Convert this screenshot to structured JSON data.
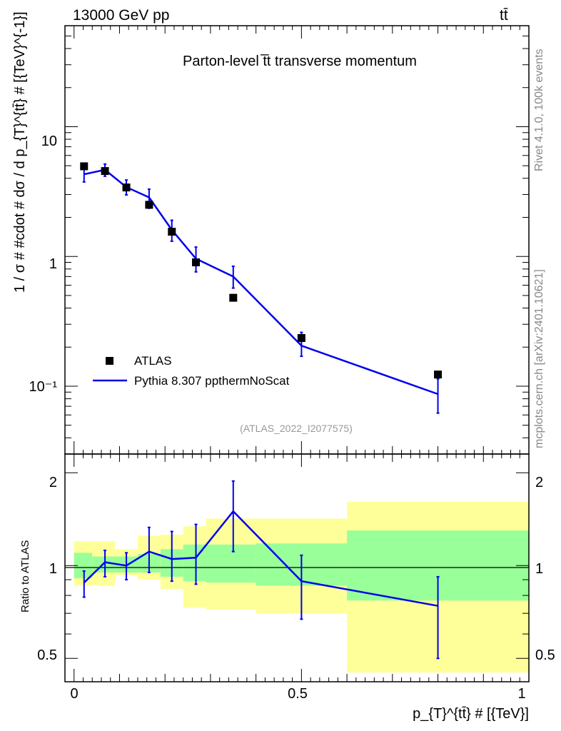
{
  "header": {
    "energy_label": "13000 GeV pp",
    "process_label": "tt̄"
  },
  "side_labels": {
    "rivet": "Rivet 4.1.0,  100k events",
    "mcplots": "mcplots.cern.ch [arXiv:2401.10621]"
  },
  "chart_data": {
    "type": "line",
    "title": "Parton-level t̅t transverse momentum",
    "analysis_id": "(ATLAS_2022_I2077575)",
    "ylabel": "1 / σ # #cdot # dσ / d p_{T}^{tt̄} # [{TeV}^{-1}]",
    "xlabel": "p_{T}^{tt̄} # [{TeV}]",
    "ratio_ylabel": "Ratio to ATLAS",
    "xlim": [
      -0.02,
      1.0
    ],
    "ylim_main": [
      0.03,
      60
    ],
    "ylim_ratio": [
      0.42,
      2.3
    ],
    "main_y_ticks": [
      "10⁻¹",
      "1",
      "10"
    ],
    "ratio_y_ticks": [
      "0.5",
      "1",
      "2"
    ],
    "x_ticks": [
      "0",
      "0.5",
      "1"
    ],
    "legend": [
      "ATLAS",
      "Pythia 8.307 ppthermNoScat"
    ],
    "series": [
      {
        "name": "ATLAS",
        "style": "markers",
        "color": "#000000",
        "x": [
          0.022,
          0.068,
          0.115,
          0.165,
          0.215,
          0.268,
          0.35,
          0.5,
          0.8
        ],
        "values": [
          4.95,
          4.55,
          3.4,
          2.5,
          1.55,
          0.9,
          0.48,
          0.235,
          0.123
        ]
      },
      {
        "name": "Pythia 8.307 ppthermNoScat",
        "style": "line",
        "color": "#0000ee",
        "x": [
          0.022,
          0.068,
          0.115,
          0.165,
          0.215,
          0.268,
          0.35,
          0.5,
          0.8
        ],
        "values": [
          4.3,
          4.65,
          3.42,
          2.85,
          1.6,
          0.96,
          0.7,
          0.205,
          0.087
        ],
        "err_low": [
          3.75,
          4.15,
          2.98,
          2.35,
          1.31,
          0.76,
          0.57,
          0.17,
          0.062
        ],
        "err_high": [
          4.75,
          5.15,
          3.88,
          3.3,
          1.9,
          1.18,
          0.84,
          0.26,
          0.114
        ]
      }
    ],
    "ratio": {
      "x": [
        0.022,
        0.068,
        0.115,
        0.165,
        0.215,
        0.268,
        0.35,
        0.5,
        0.8
      ],
      "values": [
        0.88,
        1.025,
        1.0,
        1.11,
        1.05,
        1.06,
        1.5,
        0.89,
        0.74
      ],
      "err_low": [
        0.79,
        0.92,
        0.9,
        0.95,
        0.89,
        0.87,
        1.11,
        0.67,
        0.5
      ],
      "err_high": [
        0.96,
        1.12,
        1.1,
        1.33,
        1.29,
        1.36,
        1.88,
        1.08,
        0.92
      ],
      "band_bins": [
        0.0,
        0.04,
        0.09,
        0.14,
        0.19,
        0.24,
        0.29,
        0.4,
        0.6,
        1.0
      ],
      "yellow_low": [
        0.86,
        0.86,
        0.93,
        0.9,
        0.84,
        0.73,
        0.72,
        0.7,
        0.45
      ],
      "yellow_high": [
        1.2,
        1.2,
        1.13,
        1.25,
        1.26,
        1.34,
        1.42,
        1.42,
        1.61
      ],
      "green_low": [
        0.91,
        0.95,
        0.95,
        0.95,
        0.92,
        0.89,
        0.88,
        0.86,
        0.77
      ],
      "green_high": [
        1.1,
        1.07,
        1.07,
        1.09,
        1.13,
        1.17,
        1.17,
        1.18,
        1.3
      ]
    },
    "colors": {
      "axis": "#000000",
      "band_green": "#99ff99",
      "band_yellow": "#ffff99",
      "mc_line": "#0000ee",
      "caption": "#999999"
    }
  }
}
